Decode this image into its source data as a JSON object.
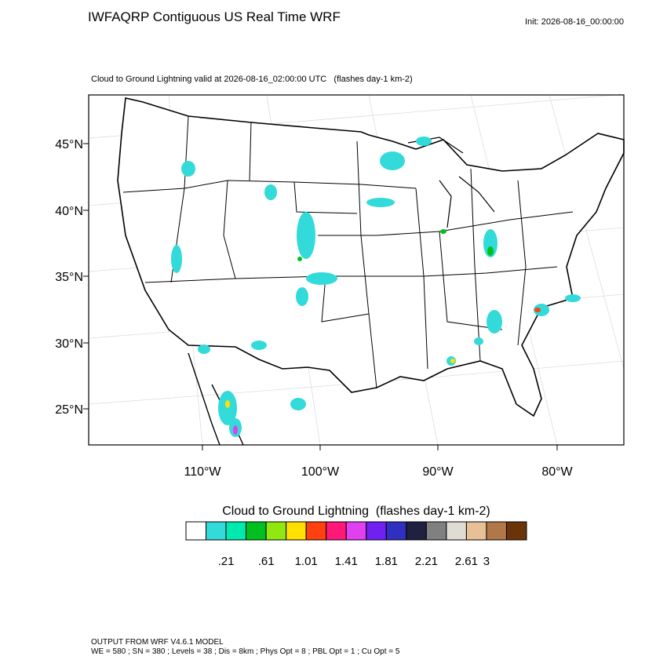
{
  "header": {
    "title": "IWFAQRP Contiguous US Real Time WRF",
    "init": "Init: 2026-08-16_00:00:00"
  },
  "map": {
    "subtitle": "Cloud to Ground Lightning valid at 2026-08-16_02:00:00 UTC   (flashes day-1 km-2)",
    "lat_labels": [
      "45°N",
      "40°N",
      "35°N",
      "30°N",
      "25°N"
    ],
    "lon_labels": [
      "110°W",
      "100°W",
      "90°W",
      "80°W"
    ]
  },
  "colorbar": {
    "title": "Cloud to Ground Lightning  (flashes day-1 km-2)",
    "colors": [
      "#ffffff",
      "#33dada",
      "#00eab0",
      "#00c020",
      "#90e810",
      "#ffe000",
      "#ff4010",
      "#ff1878",
      "#e040f0",
      "#7020f0",
      "#3030c0",
      "#202040",
      "#808080",
      "#e0dcd4",
      "#e8c098",
      "#b07848",
      "#6a3408"
    ],
    "labels": [
      ".21",
      ".61",
      "1.01",
      "1.41",
      "1.81",
      "2.21",
      "2.61",
      "3"
    ]
  },
  "footer": {
    "line1": "OUTPUT FROM WRF V4.6.1 MODEL",
    "line2": "WE = 580 ; SN = 380 ; Levels = 38 ; Dis = 8km ; Phys Opt = 8 ; PBL Opt = 1 ; Cu Opt = 5"
  }
}
